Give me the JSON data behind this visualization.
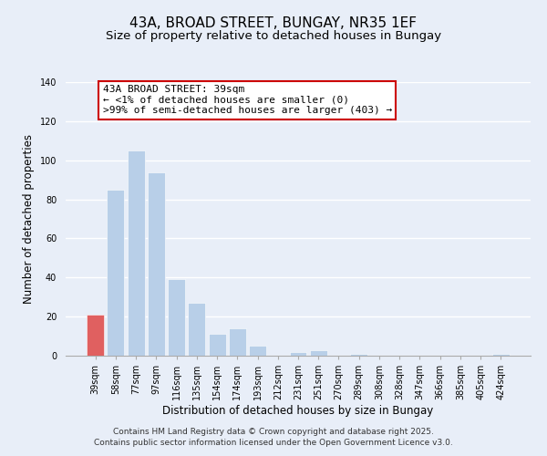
{
  "title": "43A, BROAD STREET, BUNGAY, NR35 1EF",
  "subtitle": "Size of property relative to detached houses in Bungay",
  "xlabel": "Distribution of detached houses by size in Bungay",
  "ylabel": "Number of detached properties",
  "bar_labels": [
    "39sqm",
    "58sqm",
    "77sqm",
    "97sqm",
    "116sqm",
    "135sqm",
    "154sqm",
    "174sqm",
    "193sqm",
    "212sqm",
    "231sqm",
    "251sqm",
    "270sqm",
    "289sqm",
    "308sqm",
    "328sqm",
    "347sqm",
    "366sqm",
    "385sqm",
    "405sqm",
    "424sqm"
  ],
  "bar_values": [
    21,
    85,
    105,
    94,
    39,
    27,
    11,
    14,
    5,
    0,
    2,
    3,
    0,
    1,
    0,
    0,
    0,
    0,
    0,
    0,
    1
  ],
  "highlight_index": 0,
  "bar_color_normal": "#b8cfe8",
  "bar_color_highlight": "#e06060",
  "ylim": [
    0,
    140
  ],
  "yticks": [
    0,
    20,
    40,
    60,
    80,
    100,
    120,
    140
  ],
  "annotation_title": "43A BROAD STREET: 39sqm",
  "annotation_line1": "← <1% of detached houses are smaller (0)",
  "annotation_line2": ">99% of semi-detached houses are larger (403) →",
  "footer1": "Contains HM Land Registry data © Crown copyright and database right 2025.",
  "footer2": "Contains public sector information licensed under the Open Government Licence v3.0.",
  "background_color": "#e8eef8",
  "plot_background": "#e8eef8",
  "grid_color": "#ffffff",
  "title_fontsize": 11,
  "subtitle_fontsize": 9.5,
  "axis_label_fontsize": 8.5,
  "tick_fontsize": 7,
  "footer_fontsize": 6.5,
  "annotation_fontsize": 8,
  "annotation_box_edgecolor": "#cc0000",
  "annotation_box_facecolor": "#ffffff"
}
